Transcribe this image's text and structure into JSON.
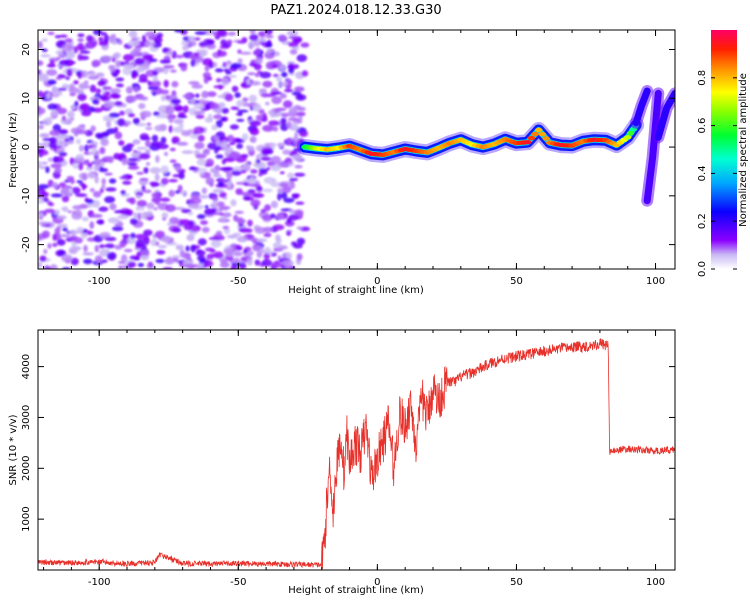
{
  "figure": {
    "title": "PAZ1.2024.018.12.33.G30"
  },
  "chart_data": [
    {
      "type": "heatmap",
      "title": "PAZ1.2024.018.12.33.G30",
      "xlabel": "Height of straight line (km)",
      "ylabel": "Frequency (Hz)",
      "xlim": [
        -122,
        107
      ],
      "ylim": [
        -25,
        24
      ],
      "xticks": [
        -100,
        -50,
        0,
        50,
        100
      ],
      "yticks": [
        -20,
        -10,
        0,
        10,
        20
      ],
      "colorbar": {
        "label": "Normalized spectral amplitude",
        "range": [
          0,
          1
        ],
        "ticks": [
          0.0,
          0.2,
          0.4,
          0.6,
          0.8
        ],
        "colormap": "gist_rainbow_r"
      },
      "noise_region_x": [
        -122,
        -26
      ],
      "ridge": {
        "x": [
          -26,
          -22,
          -18,
          -14,
          -10,
          -6,
          -2,
          2,
          6,
          10,
          14,
          18,
          22,
          26,
          30,
          34,
          38,
          42,
          46,
          50,
          54,
          58,
          62,
          66,
          70,
          74,
          78,
          82,
          86,
          90,
          93
        ],
        "y": [
          0,
          -0.3,
          -0.5,
          -0.2,
          0.2,
          -0.6,
          -1.4,
          -1.6,
          -1.0,
          -0.4,
          -0.8,
          -1.1,
          -0.2,
          0.8,
          1.5,
          0.5,
          0.0,
          0.6,
          1.6,
          0.8,
          1.0,
          3.5,
          0.9,
          0.4,
          0.3,
          1.2,
          1.5,
          1.4,
          0.4,
          2.0,
          4.5
        ],
        "amplitude": [
          0.55,
          0.7,
          0.8,
          0.75,
          0.9,
          0.85,
          0.95,
          0.9,
          0.85,
          0.95,
          0.9,
          0.85,
          0.8,
          0.85,
          0.8,
          0.75,
          0.85,
          0.8,
          0.85,
          0.9,
          0.95,
          0.8,
          0.85,
          0.95,
          0.9,
          0.85,
          0.95,
          0.9,
          0.8,
          0.7,
          0.4
        ]
      },
      "tail_segments": [
        {
          "x": [
            93,
            95,
            97
          ],
          "y": [
            5,
            8.5,
            11.5
          ],
          "amplitude": 0.35
        },
        {
          "x": [
            97,
            99,
            101
          ],
          "y": [
            -11,
            -2,
            11
          ],
          "amplitude": 0.3
        },
        {
          "x": [
            101,
            104,
            107
          ],
          "y": [
            2,
            8,
            11
          ],
          "amplitude": 0.35
        }
      ]
    },
    {
      "type": "line",
      "xlabel": "Height of straight line (km)",
      "ylabel": "SNR (10 * v/v)",
      "xlim": [
        -122,
        107
      ],
      "ylim": [
        0,
        4720
      ],
      "xticks": [
        -100,
        -50,
        0,
        50,
        100
      ],
      "yticks": [
        1000,
        2000,
        3000,
        4000
      ],
      "color": "#e8302a",
      "series": [
        {
          "x": [
            -122,
            -110,
            -100,
            -90,
            -80,
            -78,
            -70,
            -60,
            -50,
            -40,
            -30,
            -20,
            -19,
            -18,
            -17,
            -16,
            -15,
            -14,
            -13,
            -12,
            -11,
            -10,
            -8,
            -6,
            -4,
            -2,
            0,
            2,
            4,
            6,
            8,
            10,
            12,
            14,
            16,
            18,
            20,
            22,
            25,
            28,
            30,
            35,
            40,
            45,
            50,
            55,
            60,
            65,
            70,
            75,
            80,
            83,
            83.5,
            85,
            90,
            95,
            100,
            107
          ],
          "y": [
            150,
            140,
            160,
            120,
            150,
            300,
            130,
            120,
            130,
            120,
            110,
            100,
            600,
            1400,
            2100,
            1100,
            1800,
            2300,
            2600,
            1900,
            2700,
            2100,
            2500,
            2300,
            2800,
            1800,
            2200,
            2500,
            2900,
            2000,
            3100,
            2800,
            3300,
            2400,
            3400,
            3000,
            3600,
            3300,
            3700,
            3700,
            3800,
            3900,
            4050,
            4150,
            4200,
            4250,
            4300,
            4350,
            4380,
            4400,
            4450,
            4420,
            2300,
            2350,
            2380,
            2360,
            2340,
            2370
          ]
        }
      ]
    }
  ]
}
